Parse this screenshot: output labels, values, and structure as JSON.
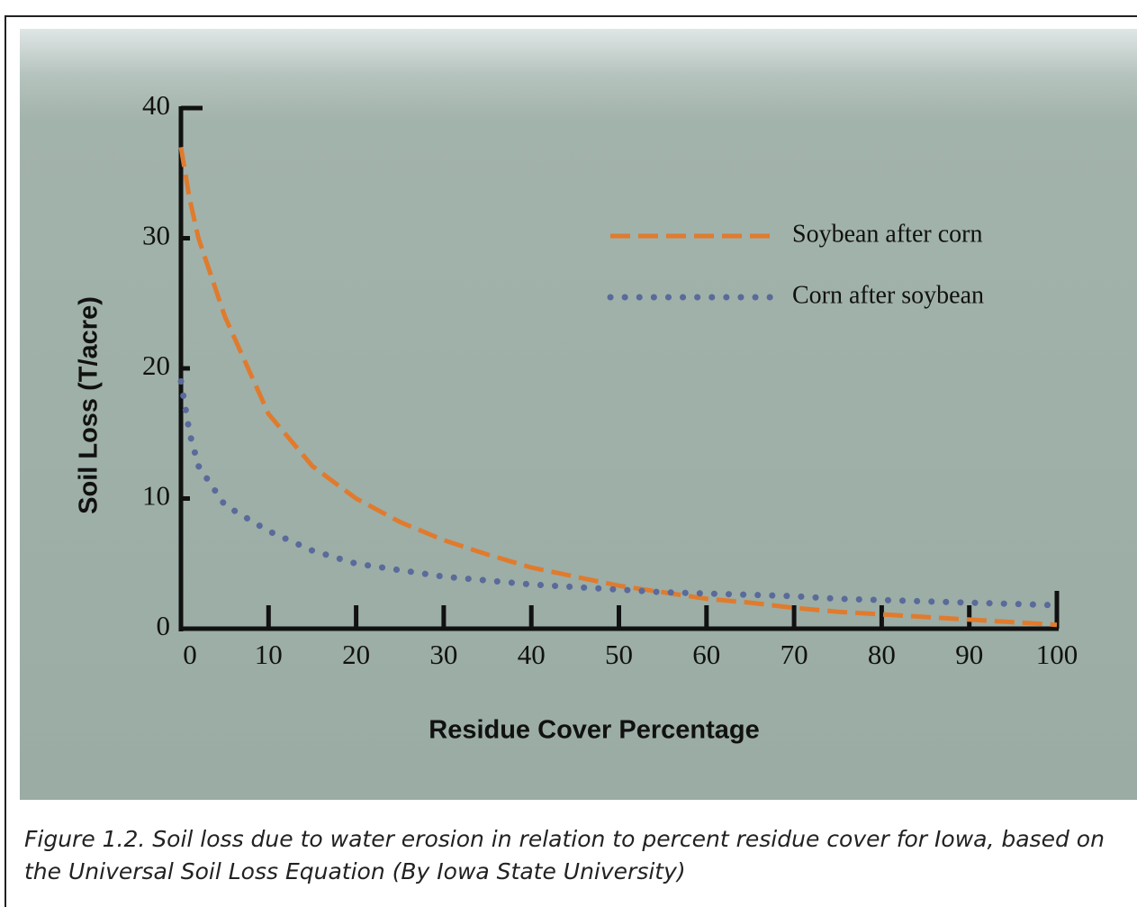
{
  "chart_data": {
    "type": "line",
    "x_label": "Residue Cover Percentage",
    "y_label": "Soil Loss (T/acre)",
    "x": [
      0,
      1,
      2,
      5,
      10,
      15,
      20,
      25,
      30,
      35,
      40,
      45,
      50,
      55,
      60,
      65,
      70,
      75,
      80,
      85,
      90,
      95,
      100
    ],
    "series": [
      {
        "name": "Soybean after corn",
        "color": "#e07b2e",
        "style": "dashed",
        "values": [
          37,
          33,
          30,
          24,
          16.5,
          12.5,
          10,
          8.2,
          6.8,
          5.7,
          4.7,
          4,
          3.3,
          2.8,
          2.3,
          2,
          1.6,
          1.3,
          1.1,
          0.9,
          0.7,
          0.5,
          0.3
        ]
      },
      {
        "name": "Corn after soybean",
        "color": "#5a6a9a",
        "style": "dotted",
        "values": [
          19,
          15,
          12.5,
          9.5,
          7.5,
          6,
          5,
          4.5,
          4,
          3.7,
          3.4,
          3.2,
          3,
          2.8,
          2.7,
          2.6,
          2.5,
          2.3,
          2.2,
          2.1,
          2,
          1.9,
          1.8
        ]
      }
    ],
    "xlim": [
      0,
      100
    ],
    "xticks": [
      0,
      10,
      20,
      30,
      40,
      50,
      60,
      70,
      80,
      90,
      100
    ],
    "ylim": [
      0,
      40
    ],
    "yticks": [
      0,
      10,
      20,
      30,
      40
    ],
    "caption": "Figure 1.2. Soil loss due to water erosion in relation to percent residue cover for Iowa, based on the Universal Soil Loss Equation (By Iowa State University)"
  }
}
